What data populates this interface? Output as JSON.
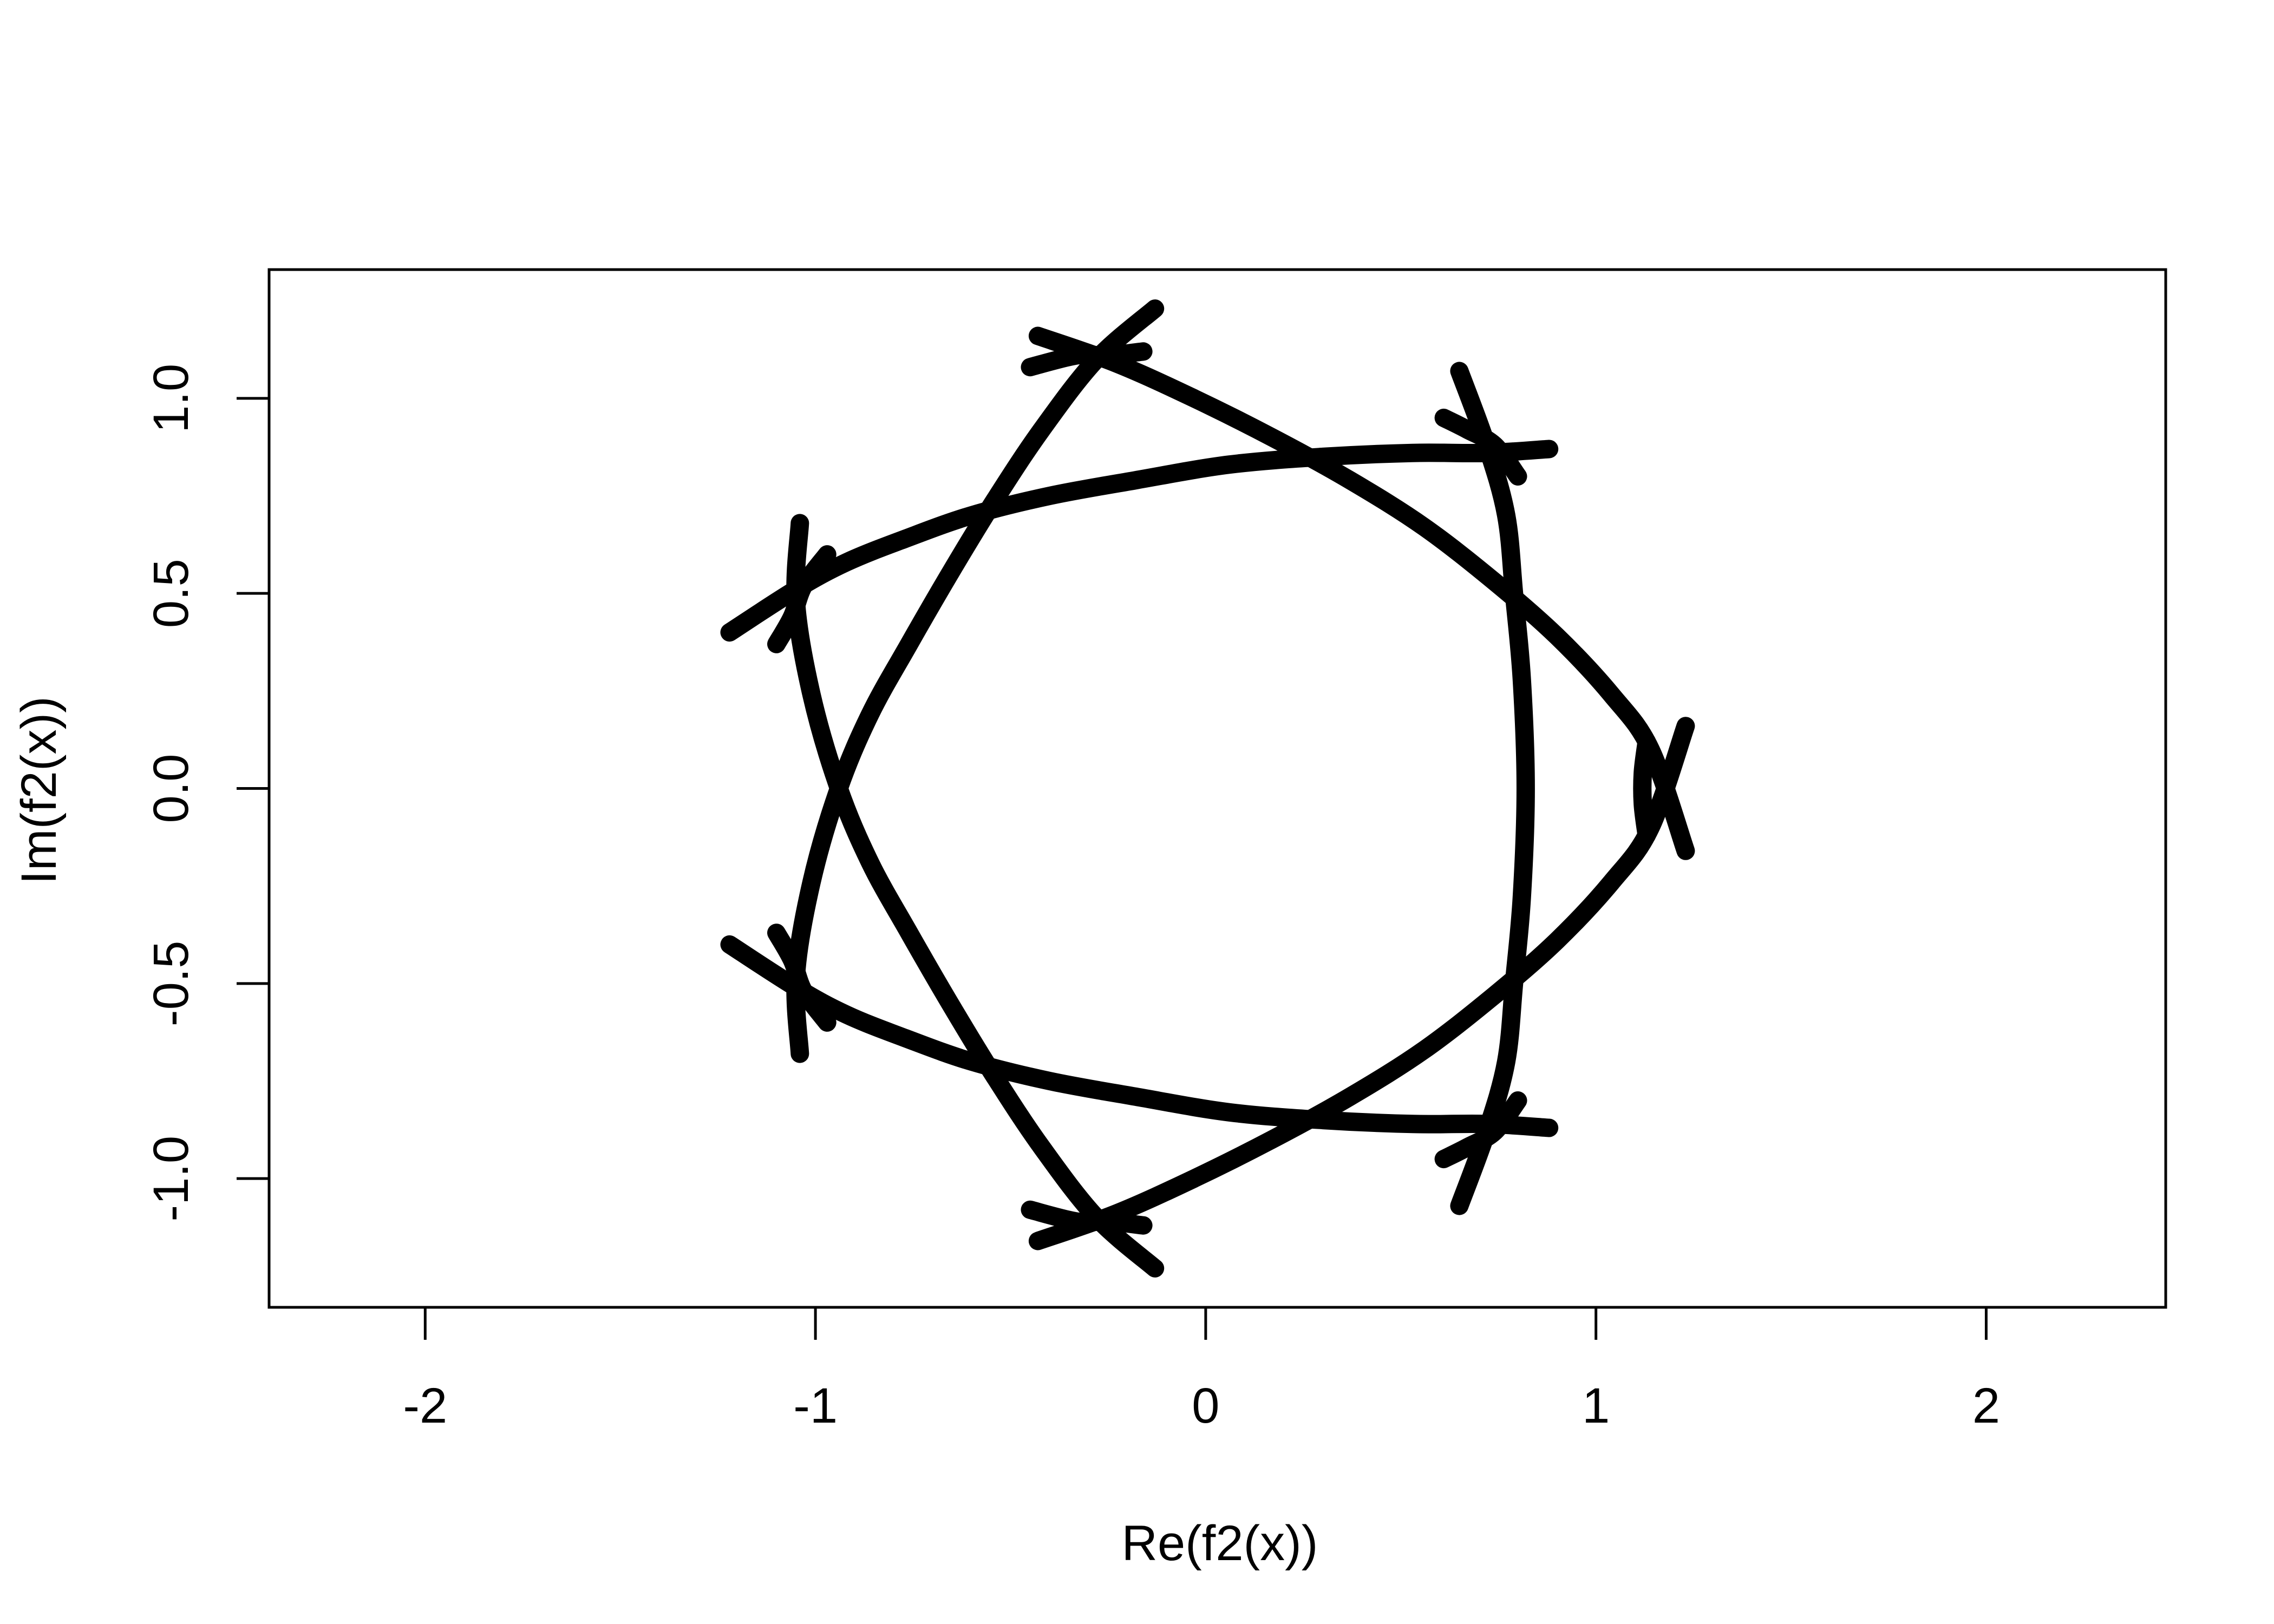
{
  "chart_data": {
    "type": "line",
    "title": "",
    "xlabel": "Re(f2(x))",
    "ylabel": "Im(f2(x))",
    "xlim": [
      -2.4,
      2.46
    ],
    "ylim": [
      -1.33,
      1.33
    ],
    "x_ticks": [
      -2,
      -1,
      0,
      1,
      2
    ],
    "x_tick_labels": [
      "-2",
      "-1",
      "0",
      "1",
      "2"
    ],
    "y_ticks": [
      -1.0,
      -0.5,
      0.0,
      0.5,
      1.0
    ],
    "y_tick_labels": [
      "-1.0",
      "-0.5",
      "0.0",
      "0.5",
      "1.0"
    ],
    "grid": false,
    "legend": "none",
    "line_color": "#000000",
    "series": [
      {
        "values_x": [
          -1.22,
          -1.05,
          -0.92,
          -0.77,
          -0.6,
          -0.4,
          -0.18,
          0.06,
          0.3,
          0.53,
          0.72,
          0.88
        ],
        "values_y": [
          0.4,
          0.51,
          0.58,
          0.64,
          0.7,
          0.75,
          0.79,
          0.83,
          0.85,
          0.86,
          0.86,
          0.87
        ]
      },
      {
        "values_x": [
          -1.22,
          -1.05,
          -0.92,
          -0.77,
          -0.6,
          -0.4,
          -0.18,
          0.06,
          0.3,
          0.53,
          0.72,
          0.88
        ],
        "values_y": [
          -0.4,
          -0.51,
          -0.58,
          -0.64,
          -0.7,
          -0.75,
          -0.79,
          -0.83,
          -0.85,
          -0.86,
          -0.86,
          -0.87
        ]
      },
      {
        "values_x": [
          -0.43,
          -0.23,
          -0.03,
          0.17,
          0.37,
          0.56,
          0.74,
          0.9,
          1.04,
          1.14,
          1.23
        ],
        "values_y": [
          1.16,
          1.09,
          1.0,
          0.9,
          0.79,
          0.67,
          0.53,
          0.39,
          0.24,
          0.1,
          -0.16
        ]
      },
      {
        "values_x": [
          -0.43,
          -0.23,
          -0.03,
          0.17,
          0.37,
          0.56,
          0.74,
          0.9,
          1.04,
          1.14,
          1.23
        ],
        "values_y": [
          -1.16,
          -1.09,
          -1.0,
          -0.9,
          -0.79,
          -0.67,
          -0.53,
          -0.39,
          -0.24,
          -0.1,
          0.16
        ]
      },
      {
        "values_x": [
          -0.13,
          -0.28,
          -0.42,
          -0.54,
          -0.65,
          -0.76,
          -0.86,
          -0.94,
          -1.01,
          -1.05,
          -1.04
        ],
        "values_y": [
          1.23,
          1.1,
          0.92,
          0.74,
          0.56,
          0.37,
          0.19,
          0.0,
          -0.24,
          -0.48,
          -0.68
        ]
      },
      {
        "values_x": [
          -0.13,
          -0.28,
          -0.42,
          -0.54,
          -0.65,
          -0.76,
          -0.86,
          -0.94,
          -1.01,
          -1.05,
          -1.04
        ],
        "values_y": [
          -1.23,
          -1.1,
          -0.92,
          -0.74,
          -0.56,
          -0.37,
          -0.19,
          0.0,
          0.24,
          0.48,
          0.68
        ]
      },
      {
        "values_x": [
          0.65,
          0.72,
          0.77,
          0.79,
          0.81,
          0.82,
          0.81,
          0.79,
          0.77,
          0.72,
          0.65
        ],
        "values_y": [
          1.07,
          0.88,
          0.7,
          0.5,
          0.28,
          0.0,
          -0.28,
          -0.5,
          -0.7,
          -0.88,
          -1.07
        ]
      },
      {
        "values_x": [
          -0.45,
          -0.33,
          -0.25,
          -0.16
        ],
        "values_y": [
          1.08,
          1.11,
          1.11,
          1.12
        ]
      },
      {
        "values_x": [
          -0.45,
          -0.33,
          -0.25,
          -0.16
        ],
        "values_y": [
          -1.08,
          -1.11,
          -1.11,
          -1.12
        ]
      },
      {
        "values_x": [
          -1.1,
          -1.06,
          -1.03,
          -0.97
        ],
        "values_y": [
          0.37,
          0.44,
          0.52,
          0.6
        ]
      },
      {
        "values_x": [
          -1.1,
          -1.06,
          -1.03,
          -0.97
        ],
        "values_y": [
          -0.37,
          -0.44,
          -0.52,
          -0.6
        ]
      },
      {
        "values_x": [
          0.61,
          0.67,
          0.74,
          0.8
        ],
        "values_y": [
          0.95,
          0.92,
          0.88,
          0.8
        ]
      },
      {
        "values_x": [
          0.61,
          0.67,
          0.74,
          0.8
        ],
        "values_y": [
          -0.95,
          -0.92,
          -0.88,
          -0.8
        ]
      },
      {
        "values_x": [
          1.13,
          1.12,
          1.12,
          1.13
        ],
        "values_y": [
          0.12,
          0.04,
          -0.04,
          -0.12
        ]
      }
    ]
  }
}
